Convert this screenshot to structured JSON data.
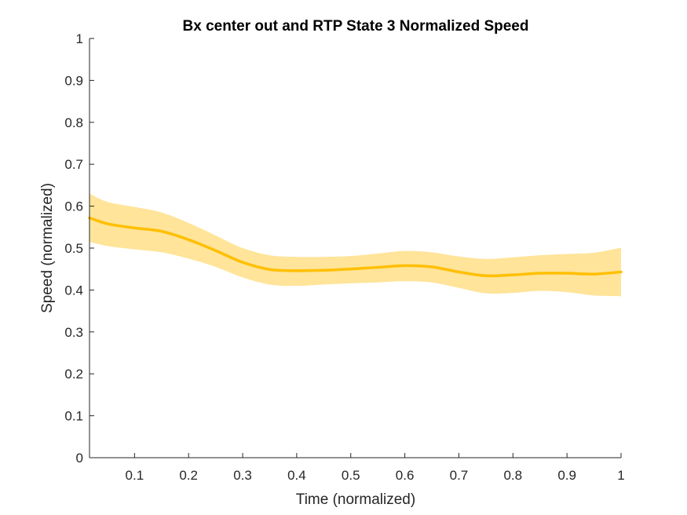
{
  "chart_data": {
    "type": "area",
    "title": "Bx  center out and RTP State 3 Normalized Speed",
    "xlabel": "Time (normalized)",
    "ylabel": "Speed (normalized)",
    "xlim": [
      0.0167,
      1
    ],
    "ylim": [
      0,
      1
    ],
    "xticks": [
      "0.1",
      "0.2",
      "0.3",
      "0.4",
      "0.5",
      "0.6",
      "0.7",
      "0.8",
      "0.9",
      "1"
    ],
    "yticks": [
      "0",
      "0.1",
      "0.2",
      "0.3",
      "0.4",
      "0.5",
      "0.6",
      "0.7",
      "0.8",
      "0.9",
      "1"
    ],
    "grid": false,
    "colors": {
      "line": "#FFBF00",
      "band": "#FFE499",
      "axis": "#262626"
    },
    "series": [
      {
        "x": [
          0.0167,
          0.05,
          0.1,
          0.15,
          0.2,
          0.25,
          0.3,
          0.35,
          0.4,
          0.45,
          0.5,
          0.55,
          0.6,
          0.65,
          0.7,
          0.75,
          0.8,
          0.85,
          0.9,
          0.95,
          1.0
        ],
        "y": [
          0.572,
          0.558,
          0.548,
          0.54,
          0.52,
          0.494,
          0.466,
          0.449,
          0.446,
          0.447,
          0.45,
          0.454,
          0.458,
          0.455,
          0.443,
          0.434,
          0.436,
          0.44,
          0.44,
          0.438,
          0.443
        ],
        "upper": [
          0.63,
          0.61,
          0.598,
          0.585,
          0.56,
          0.53,
          0.5,
          0.483,
          0.479,
          0.479,
          0.481,
          0.487,
          0.493,
          0.49,
          0.48,
          0.474,
          0.478,
          0.483,
          0.486,
          0.489,
          0.501
        ],
        "lower": [
          0.515,
          0.505,
          0.497,
          0.49,
          0.475,
          0.455,
          0.43,
          0.413,
          0.41,
          0.413,
          0.416,
          0.418,
          0.421,
          0.418,
          0.405,
          0.392,
          0.393,
          0.398,
          0.395,
          0.387,
          0.385
        ]
      }
    ]
  }
}
